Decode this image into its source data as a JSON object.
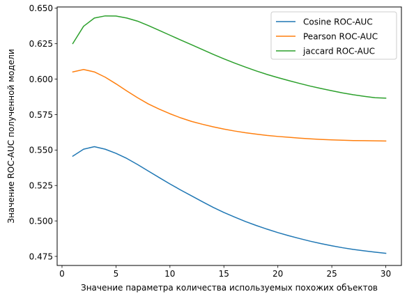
{
  "chart_data": {
    "type": "line",
    "title": "",
    "xlabel": "Значение параметра количества используемых похожих объектов",
    "ylabel": "Значение ROC-AUC полученной модели",
    "xlim": [
      -0.45,
      31.45
    ],
    "ylim": [
      0.4686,
      0.6509
    ],
    "xticks": [
      0,
      5,
      10,
      15,
      20,
      25,
      30
    ],
    "xtick_labels": [
      "0",
      "5",
      "10",
      "15",
      "20",
      "25",
      "30"
    ],
    "yticks": [
      0.475,
      0.5,
      0.525,
      0.55,
      0.575,
      0.6,
      0.625,
      0.65
    ],
    "ytick_labels": [
      "0.475",
      "0.500",
      "0.525",
      "0.550",
      "0.575",
      "0.600",
      "0.625",
      "0.650"
    ],
    "grid": false,
    "legend_position": "top-right",
    "x": [
      1,
      2,
      3,
      4,
      5,
      6,
      7,
      8,
      9,
      10,
      11,
      12,
      13,
      14,
      15,
      16,
      17,
      18,
      19,
      20,
      21,
      22,
      23,
      24,
      25,
      26,
      27,
      28,
      29,
      30
    ],
    "series": [
      {
        "name": "Cosine ROC-AUC",
        "color": "#1f77b4",
        "values": [
          0.5457,
          0.5506,
          0.5524,
          0.5506,
          0.5477,
          0.5441,
          0.5398,
          0.5352,
          0.5306,
          0.5261,
          0.5218,
          0.5177,
          0.5136,
          0.5096,
          0.506,
          0.5027,
          0.4996,
          0.4968,
          0.4942,
          0.4918,
          0.4896,
          0.4876,
          0.4857,
          0.484,
          0.4825,
          0.4811,
          0.4799,
          0.4789,
          0.478,
          0.4772
        ]
      },
      {
        "name": "Pearson ROC-AUC",
        "color": "#ff7f0e",
        "values": [
          0.6051,
          0.6068,
          0.6051,
          0.6014,
          0.5967,
          0.5917,
          0.5869,
          0.5825,
          0.5789,
          0.5756,
          0.5727,
          0.5702,
          0.5682,
          0.5664,
          0.5648,
          0.5634,
          0.5622,
          0.5612,
          0.5603,
          0.5596,
          0.559,
          0.5584,
          0.5579,
          0.5575,
          0.5572,
          0.5569,
          0.5567,
          0.5566,
          0.5565,
          0.5564
        ]
      },
      {
        "name": "jaccard ROC-AUC",
        "color": "#2ca02c",
        "values": [
          0.6251,
          0.6373,
          0.6431,
          0.6446,
          0.6445,
          0.6431,
          0.6409,
          0.6378,
          0.6344,
          0.631,
          0.6276,
          0.6243,
          0.6209,
          0.6175,
          0.6143,
          0.6113,
          0.6085,
          0.6058,
          0.6033,
          0.6011,
          0.599,
          0.597,
          0.5951,
          0.5934,
          0.5918,
          0.5903,
          0.589,
          0.5879,
          0.5869,
          0.5866
        ]
      }
    ]
  }
}
